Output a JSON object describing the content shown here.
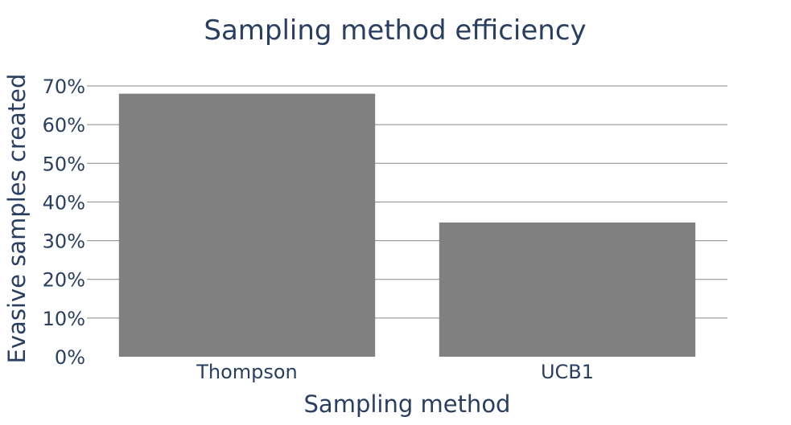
{
  "chart_data": {
    "type": "bar",
    "title": "Sampling method efficiency",
    "xlabel": "Sampling method",
    "ylabel": "Evasive samples created",
    "categories": [
      "Thompson",
      "UCB1"
    ],
    "values": [
      68,
      34.7
    ],
    "value_unit": "%",
    "ylim": [
      0,
      70
    ],
    "yticks": [
      0,
      10,
      20,
      30,
      40,
      50,
      60,
      70
    ],
    "ytick_labels": [
      "0%",
      "10%",
      "20%",
      "30%",
      "40%",
      "50%",
      "60%",
      "70%"
    ],
    "grid": true,
    "bar_color": "#808080",
    "grid_color": "#888888",
    "text_color": "#2a3f5f"
  }
}
